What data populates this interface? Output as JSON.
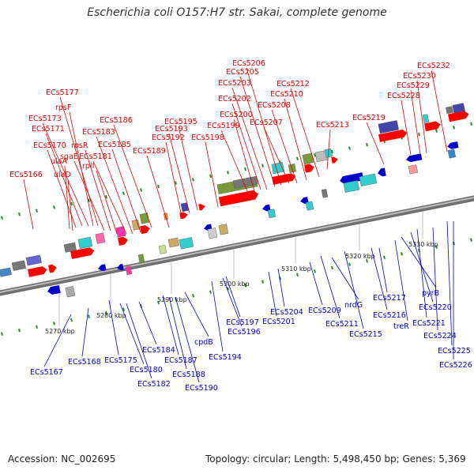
{
  "title": "Escherichia coli O157:H7 str. Sakai, complete genome",
  "footer": {
    "accession": "Accession: NC_002695",
    "summary": "Topology: circular; Length: 5,498,450 bp; Genes: 5,369"
  },
  "colors": {
    "top_label": "#dd0000",
    "bottom_label": "#0000cc",
    "axis": "#8a8a8a",
    "tick_mark": "#2a8a2a"
  },
  "scale_labels": [
    "5270 kbp",
    "5280 kbp",
    "5290 kbp",
    "5300 kbp",
    "5310 kbp",
    "5320 kbp",
    "5330 kbp"
  ],
  "top_labels": [
    "ECs5166",
    "ulaD",
    "ulaA",
    "ECs5170",
    "ECs5171",
    "ECs5173",
    "rpsF",
    "ECs5177",
    "sgaE",
    "rpsR",
    "rplI",
    "ECs5181",
    "ECs5183",
    "ECs5185",
    "ECs5186",
    "ECs5189",
    "ECs5192",
    "ECs5193",
    "ECs5195",
    "ECs5198",
    "ECs5199",
    "ECs5200",
    "ECs5202",
    "ECs5203",
    "ECs5205",
    "ECs5206",
    "ECs5207",
    "ECs5208",
    "ECs5210",
    "ECs5212",
    "ECs5213",
    "ECs5219",
    "ECs5228",
    "ECs5229",
    "ECs5230",
    "ECs5232"
  ],
  "bottom_labels": [
    "ECs5167",
    "ECs5168",
    "ECs5175",
    "ECs5180",
    "ECs5182",
    "ECs5184",
    "ECs5187",
    "ECs5188",
    "ECs5190",
    "cpdB",
    "ECs5194",
    "ECs5196",
    "ECs5197",
    "ECs5201",
    "ECs5204",
    "ECs5209",
    "ECs5211",
    "nrdG",
    "ECs5215",
    "ECs5216",
    "ECs5217",
    "treR",
    "pyrB",
    "ECs5220",
    "ECs5221",
    "ECs5224",
    "ECs5225",
    "ECs5226"
  ]
}
